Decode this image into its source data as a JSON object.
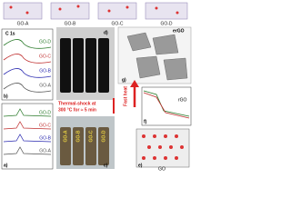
{
  "top": {
    "labels": [
      "GO-A",
      "GO-B",
      "GO-C",
      "GO-D"
    ]
  },
  "panel_b": {
    "letter": "b)",
    "title": "C 1s",
    "labels": [
      "GO-D",
      "GO-C",
      "GO-B",
      "GO-A"
    ]
  },
  "panel_a": {
    "letter": "a)",
    "labels": [
      "GO-D",
      "GO-C",
      "GO-B",
      "GO-A"
    ]
  },
  "panel_d": {
    "letter": "d)"
  },
  "shock": {
    "text": "Thermal-shock at",
    "text2": "300 °C for ≈ 5 min"
  },
  "panel_c": {
    "letter": "c)",
    "labels": [
      "GO-A",
      "GO-B",
      "GO-C",
      "GO-D"
    ]
  },
  "panel_g": {
    "letter": "g)",
    "label": "erGO"
  },
  "fast_heat": "Fast heat",
  "panel_f": {
    "letter": "f)",
    "label": "rGO"
  },
  "panel_e": {
    "letter": "e)",
    "label": "GO"
  }
}
